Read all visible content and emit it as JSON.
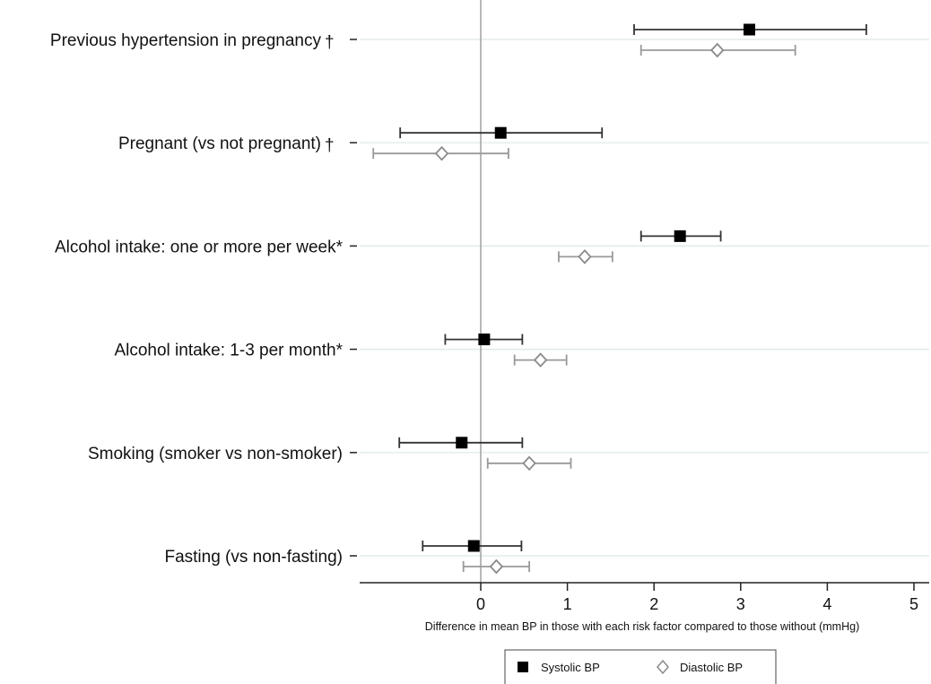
{
  "chart_data": {
    "type": "forest",
    "xlabel": "Difference in mean BP in those with each risk factor compared to those without (mmHg)",
    "xticks": [
      0,
      1,
      2,
      3,
      4,
      5
    ],
    "xlim": [
      -1.4,
      5.2
    ],
    "reference_line": 0,
    "grid": "horizontal",
    "legend_position": "bottom-center",
    "categories": [
      "Previous hypertension in pregnancy",
      "Pregnant (vs not pregnant)",
      "Alcohol intake: one or more per week*",
      "Alcohol intake: 1-3 per month*",
      "Smoking (smoker vs non-smoker)",
      "Fasting (vs non-fasting)"
    ],
    "category_markers": [
      "†",
      "†",
      "",
      "",
      "",
      ""
    ],
    "series": [
      {
        "name": "Systolic BP",
        "marker": "filled-square",
        "color": "#000000",
        "whisker_color": "#333333",
        "estimates": [
          3.1,
          0.23,
          2.3,
          0.04,
          -0.22,
          -0.08
        ],
        "lower": [
          1.77,
          -0.93,
          1.85,
          -0.41,
          -0.94,
          -0.67
        ],
        "upper": [
          4.45,
          1.4,
          2.77,
          0.48,
          0.48,
          0.47
        ]
      },
      {
        "name": "Diastolic BP",
        "marker": "open-diamond",
        "color": "#8a8a8a",
        "whisker_color": "#999999",
        "estimates": [
          2.73,
          -0.45,
          1.2,
          0.69,
          0.56,
          0.18
        ],
        "lower": [
          1.85,
          -1.24,
          0.9,
          0.39,
          0.08,
          -0.2
        ],
        "upper": [
          3.63,
          0.32,
          1.52,
          0.99,
          1.04,
          0.56
        ]
      }
    ]
  }
}
